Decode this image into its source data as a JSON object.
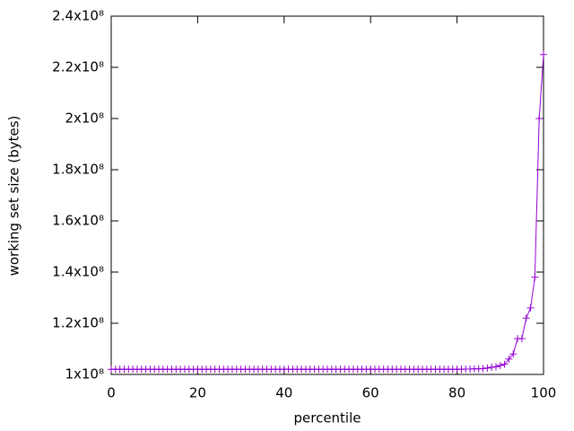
{
  "chart_data": {
    "type": "line",
    "xlabel": "percentile",
    "ylabel": "working set size (bytes)",
    "x": [
      0,
      1,
      2,
      3,
      4,
      5,
      6,
      7,
      8,
      9,
      10,
      11,
      12,
      13,
      14,
      15,
      16,
      17,
      18,
      19,
      20,
      21,
      22,
      23,
      24,
      25,
      26,
      27,
      28,
      29,
      30,
      31,
      32,
      33,
      34,
      35,
      36,
      37,
      38,
      39,
      40,
      41,
      42,
      43,
      44,
      45,
      46,
      47,
      48,
      49,
      50,
      51,
      52,
      53,
      54,
      55,
      56,
      57,
      58,
      59,
      60,
      61,
      62,
      63,
      64,
      65,
      66,
      67,
      68,
      69,
      70,
      71,
      72,
      73,
      74,
      75,
      76,
      77,
      78,
      79,
      80,
      81,
      82,
      83,
      84,
      85,
      86,
      87,
      88,
      89,
      90,
      91,
      92,
      93,
      94,
      95,
      96,
      97,
      98,
      99,
      100
    ],
    "series": [
      {
        "color": "#9400d3",
        "marker": "+",
        "values": [
          102000000,
          102000000,
          102000000,
          102000000,
          102000000,
          102000000,
          102000000,
          102000000,
          102000000,
          102000000,
          102000000,
          102000000,
          102000000,
          102000000,
          102000000,
          102000000,
          102000000,
          102000000,
          102000000,
          102000000,
          102000000,
          102000000,
          102000000,
          102000000,
          102000000,
          102000000,
          102000000,
          102000000,
          102000000,
          102000000,
          102000000,
          102000000,
          102000000,
          102000000,
          102000000,
          102000000,
          102000000,
          102000000,
          102000000,
          102000000,
          102000000,
          102000000,
          102000000,
          102000000,
          102000000,
          102000000,
          102000000,
          102000000,
          102000000,
          102000000,
          102000000,
          102000000,
          102000000,
          102000000,
          102000000,
          102000000,
          102000000,
          102000000,
          102000000,
          102000000,
          102000000,
          102000000,
          102000000,
          102000000,
          102000000,
          102000000,
          102000000,
          102000000,
          102000000,
          102000000,
          102000000,
          102000000,
          102000000,
          102000000,
          102000000,
          102000000,
          102000000,
          102000000,
          102000000,
          102000000,
          102000000,
          102000000,
          102100000,
          102100000,
          102200000,
          102200000,
          102300000,
          102500000,
          102800000,
          103000000,
          103500000,
          104000000,
          106000000,
          108000000,
          114000000,
          114000000,
          122000000,
          126000000,
          138000000,
          200000000,
          225000000
        ]
      }
    ],
    "xlim": [
      0,
      100
    ],
    "xticks": [
      0,
      20,
      40,
      60,
      80,
      100
    ],
    "ylim": [
      100000000,
      240000000
    ],
    "yticks": [
      {
        "value": 100000000,
        "label": "1x10⁸"
      },
      {
        "value": 120000000,
        "label": "1.2x10⁸"
      },
      {
        "value": 140000000,
        "label": "1.4x10⁸"
      },
      {
        "value": 160000000,
        "label": "1.6x10⁸"
      },
      {
        "value": 180000000,
        "label": "1.8x10⁸"
      },
      {
        "value": 200000000,
        "label": "2x10⁸"
      },
      {
        "value": 220000000,
        "label": "2.2x10⁸"
      },
      {
        "value": 240000000,
        "label": "2.4x10⁸"
      }
    ],
    "grid": false
  }
}
